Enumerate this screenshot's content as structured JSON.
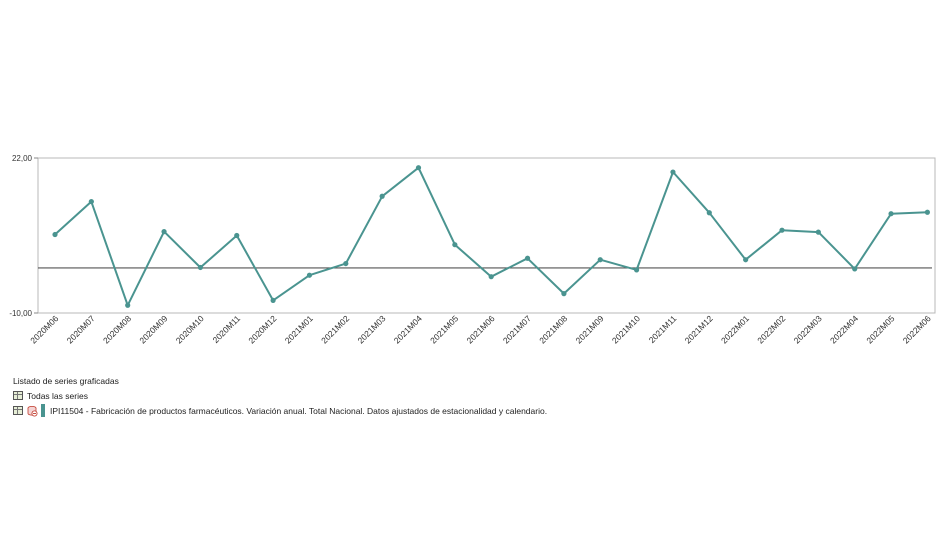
{
  "chart_data": {
    "type": "line",
    "x": [
      "2020M06",
      "2020M07",
      "2020M08",
      "2020M09",
      "2020M10",
      "2020M11",
      "2020M12",
      "2021M01",
      "2021M02",
      "2021M03",
      "2021M04",
      "2021M05",
      "2021M06",
      "2021M07",
      "2021M08",
      "2021M09",
      "2021M10",
      "2021M11",
      "2021M12",
      "2022M01",
      "2022M02",
      "2022M03",
      "2022M04",
      "2022M05",
      "2022M06"
    ],
    "series": [
      {
        "name": "IPI11504 - Fabricación de productos farmacéuticos. Variación anual. Total Nacional. Datos ajustados de estacionalidad y calendario.",
        "color": "#4a9490",
        "values": [
          6.2,
          13.0,
          -8.4,
          6.8,
          -0.6,
          6.0,
          -7.4,
          -2.2,
          0.2,
          14.1,
          20.0,
          4.1,
          -2.5,
          1.3,
          -6.0,
          1.0,
          -1.1,
          19.1,
          10.7,
          1.0,
          7.1,
          6.7,
          -0.9,
          10.5,
          10.8
        ]
      }
    ],
    "ylim": [
      -10,
      22
    ],
    "yticks": [
      "22,00",
      "-10,00"
    ],
    "reference_line": -0.7,
    "grid": false
  },
  "legend": {
    "title": "Listado de series graficadas",
    "all_label": "Todas las series",
    "series_label": "IPI11504 - Fabricación de productos farmacéuticos. Variación anual. Total Nacional. Datos ajustados de estacionalidad y calendario."
  }
}
